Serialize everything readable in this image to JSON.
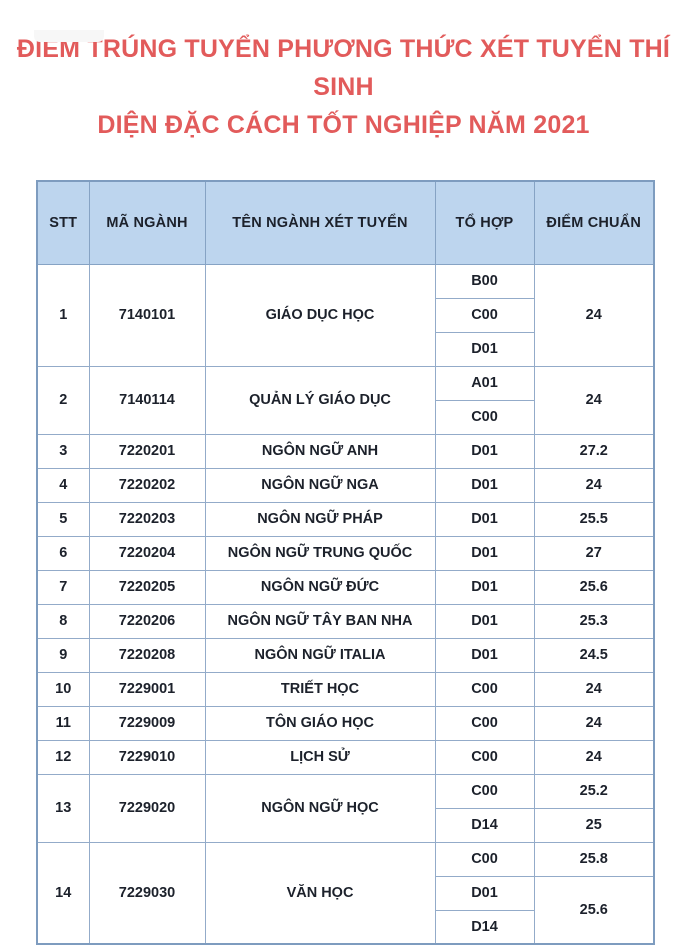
{
  "page": {
    "title_line1": "ĐIỂM TRÚNG TUYỂN PHƯƠNG THỨC XÉT TUYỂN THÍ SINH",
    "title_line2": "DIỆN ĐẶC CÁCH TỐT NGHIỆP NĂM 2021"
  },
  "colors": {
    "title_text": "#e25b5b",
    "header_background": "#bdd5ee",
    "table_border": "#93abc9",
    "cell_text": "#1c212b",
    "body_background": "#ffffff"
  },
  "table": {
    "headers": [
      "STT",
      "MÃ NGÀNH",
      "TÊN NGÀNH XÉT TUYỂN",
      "TỔ HỢP",
      "ĐIỂM CHUẨN"
    ],
    "rows": [
      {
        "stt": "1",
        "code": "7140101",
        "name": "GIÁO DỤC HỌC",
        "sub_rows": [
          {
            "combo": "B00",
            "score": "24",
            "score_rowspan": 3
          },
          {
            "combo": "C00"
          },
          {
            "combo": "D01"
          }
        ]
      },
      {
        "stt": "2",
        "code": "7140114",
        "name": "QUẢN LÝ GIÁO DỤC",
        "sub_rows": [
          {
            "combo": "A01",
            "score": "24",
            "score_rowspan": 2
          },
          {
            "combo": "C00"
          }
        ]
      },
      {
        "stt": "3",
        "code": "7220201",
        "name": "NGÔN NGỮ ANH",
        "sub_rows": [
          {
            "combo": "D01",
            "score": "27.2"
          }
        ]
      },
      {
        "stt": "4",
        "code": "7220202",
        "name": "NGÔN NGỮ NGA",
        "sub_rows": [
          {
            "combo": "D01",
            "score": "24"
          }
        ]
      },
      {
        "stt": "5",
        "code": "7220203",
        "name": "NGÔN NGỮ PHÁP",
        "sub_rows": [
          {
            "combo": "D01",
            "score": "25.5"
          }
        ]
      },
      {
        "stt": "6",
        "code": "7220204",
        "name": "NGÔN NGỮ TRUNG QUỐC",
        "sub_rows": [
          {
            "combo": "D01",
            "score": "27"
          }
        ]
      },
      {
        "stt": "7",
        "code": "7220205",
        "name": "NGÔN NGỮ ĐỨC",
        "sub_rows": [
          {
            "combo": "D01",
            "score": "25.6"
          }
        ]
      },
      {
        "stt": "8",
        "code": "7220206",
        "name": "NGÔN NGỮ TÂY BAN NHA",
        "sub_rows": [
          {
            "combo": "D01",
            "score": "25.3"
          }
        ]
      },
      {
        "stt": "9",
        "code": "7220208",
        "name": "NGÔN NGỮ ITALIA",
        "sub_rows": [
          {
            "combo": "D01",
            "score": "24.5"
          }
        ]
      },
      {
        "stt": "10",
        "code": "7229001",
        "name": "TRIẾT HỌC",
        "sub_rows": [
          {
            "combo": "C00",
            "score": "24"
          }
        ]
      },
      {
        "stt": "11",
        "code": "7229009",
        "name": "TÔN GIÁO HỌC",
        "sub_rows": [
          {
            "combo": "C00",
            "score": "24"
          }
        ]
      },
      {
        "stt": "12",
        "code": "7229010",
        "name": "LỊCH SỬ",
        "sub_rows": [
          {
            "combo": "C00",
            "score": "24"
          }
        ]
      },
      {
        "stt": "13",
        "code": "7229020",
        "name": "NGÔN NGỮ HỌC",
        "sub_rows": [
          {
            "combo": "C00",
            "score": "25.2"
          },
          {
            "combo": "D14",
            "score": "25"
          }
        ]
      },
      {
        "stt": "14",
        "code": "7229030",
        "name": "VĂN HỌC",
        "sub_rows": [
          {
            "combo": "C00",
            "score": "25.8"
          },
          {
            "combo": "D01",
            "score": "25.6",
            "score_rowspan": 2
          },
          {
            "combo": "D14"
          }
        ]
      }
    ]
  }
}
